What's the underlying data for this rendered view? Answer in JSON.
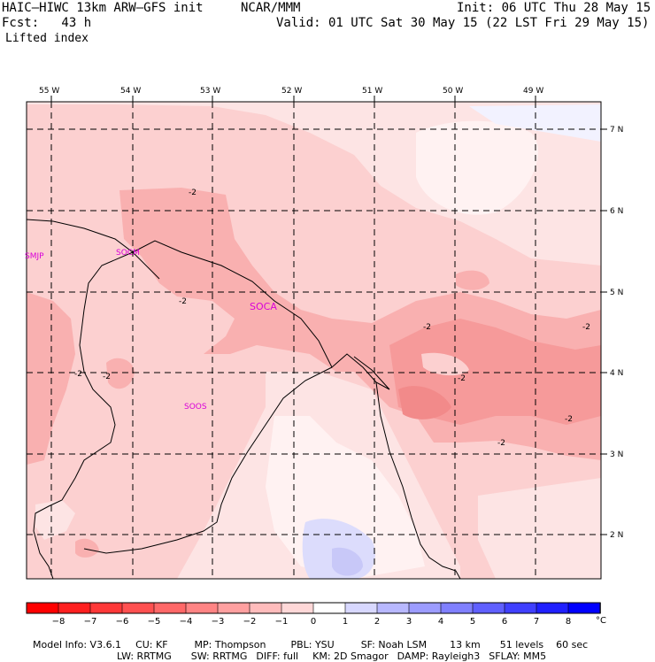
{
  "header": {
    "model_title": "HAIC–HIWC 13km ARW–GFS init",
    "org": "NCAR/MMM",
    "init": "Init: 06 UTC Thu 28 May 15",
    "fcst": "Fcst:   43 h",
    "valid": "Valid: 01 UTC Sat 30 May 15 (22 LST Fri 29 May 15)",
    "field": "Lifted index"
  },
  "map": {
    "lon_labels": [
      "55 W",
      "54 W",
      "53 W",
      "52 W",
      "51 W",
      "50 W",
      "49 W"
    ],
    "lat_labels": [
      "7 N",
      "6 N",
      "5 N",
      "4 N",
      "3 N",
      "2 N"
    ],
    "stations": [
      "SMJP",
      "SOCM",
      "SOCA",
      "SOOS"
    ],
    "contour_labels": [
      "-2",
      "-2",
      "-2",
      "-2",
      "-2",
      "-2",
      "-2",
      "-2",
      "-2"
    ]
  },
  "colorbar": {
    "ticks": [
      "−8",
      "−7",
      "−6",
      "−5",
      "−4",
      "−3",
      "−2",
      "−1",
      "0",
      "1",
      "2",
      "3",
      "4",
      "5",
      "6",
      "7",
      "8"
    ],
    "unit": "°C",
    "colors": [
      "#ff0000",
      "#ff2020",
      "#ff3838",
      "#ff5050",
      "#ff6868",
      "#ff8484",
      "#ffa0a0",
      "#ffbcbc",
      "#ffd8d8",
      "#ffffff",
      "#d8d8ff",
      "#b8b8ff",
      "#9c9cff",
      "#8080ff",
      "#6060ff",
      "#4040ff",
      "#2020ff",
      "#0000ff"
    ]
  },
  "footer": {
    "line1": [
      "Model Info: V3.6.1",
      "CU: KF",
      "MP: Thompson",
      "PBL: YSU",
      "SF: Noah LSM",
      "13 km",
      "51 levels",
      "60 sec"
    ],
    "line2": [
      "LW: RRTMG",
      "SW: RRTMG",
      "DIFF: full",
      "KM: 2D Smagor",
      "DAMP: Rayleigh3",
      "SFLAY: MM5"
    ]
  },
  "field_colors": {
    "base": "#fcd0d0",
    "light": "#fde4e4",
    "medium": "#fab4b4",
    "dark": "#f69a9a",
    "darkest": "#f28a8a",
    "near_zero": "#fff2f2",
    "positive": "#c8c8f8"
  }
}
